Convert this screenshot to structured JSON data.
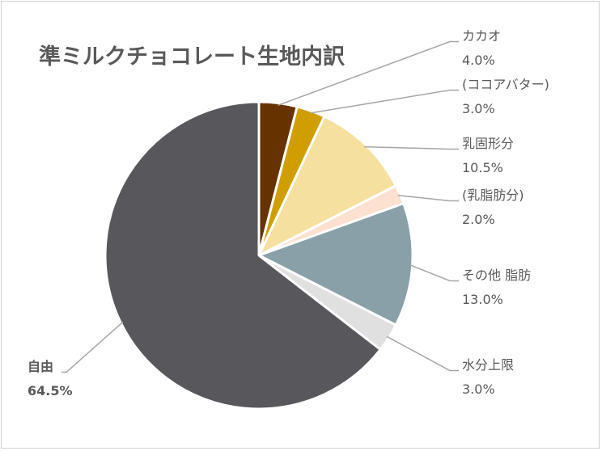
{
  "chart_data": {
    "type": "pie",
    "title": "準ミルクチョコレート生地内訳",
    "start_angle_deg": 0,
    "direction": "clockwise",
    "slices": [
      {
        "label": [
          "カカオ"
        ],
        "value_label": "4.0%",
        "value": 4.0,
        "color": "#663300"
      },
      {
        "label": [
          "(ココアバター)"
        ],
        "value_label": "3.0%",
        "value": 3.0,
        "color": "#D09E00"
      },
      {
        "label": [
          "乳固形分"
        ],
        "value_label": "10.5%",
        "value": 10.5,
        "color": "#F5E0A0"
      },
      {
        "label": [
          "(乳脂肪分)"
        ],
        "value_label": "2.0%",
        "value": 2.0,
        "color": "#FCE0D0"
      },
      {
        "label": [
          "その他 脂肪"
        ],
        "value_label": "13.0%",
        "value": 13.0,
        "color": "#8AA0A8"
      },
      {
        "label": [
          "水分上限"
        ],
        "value_label": "3.0%",
        "value": 3.0,
        "color": "#E0E0E0"
      },
      {
        "label": [
          "自由"
        ],
        "value_label": "64.5%",
        "value": 64.5,
        "color": "#58585C",
        "bold_value": true
      }
    ]
  }
}
